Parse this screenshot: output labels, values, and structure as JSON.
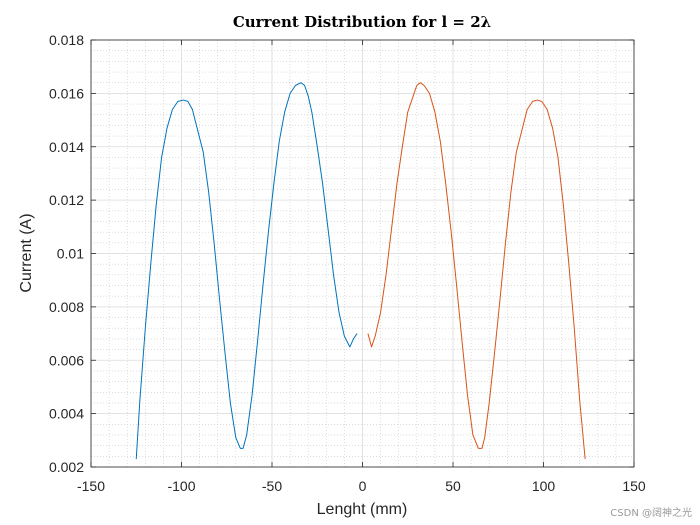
{
  "chart_data": {
    "type": "line",
    "title": "Current Distribution for l = 2λ",
    "xlabel": "Lenght (mm)",
    "ylabel": "Current (A)",
    "xlim": [
      -150,
      150
    ],
    "ylim": [
      0.002,
      0.018
    ],
    "xticks": [
      "-150",
      "-100",
      "-50",
      "0",
      "50",
      "100",
      "150"
    ],
    "yticks": [
      "0.002",
      "0.004",
      "0.006",
      "0.008",
      "0.01",
      "0.012",
      "0.014",
      "0.016",
      "0.018"
    ],
    "grid": "on (major and minor)",
    "series": [
      {
        "color": "#0072BD",
        "x": [
          -125,
          -123,
          -120,
          -117,
          -114,
          -111,
          -108,
          -105,
          -102,
          -99,
          -96.5,
          -94,
          -91,
          -88,
          -85,
          -82,
          -79,
          -76,
          -73,
          -70,
          -67.5,
          -66,
          -64,
          -61,
          -58,
          -55,
          -52,
          -49,
          -46,
          -43,
          -40,
          -37,
          -34,
          -32,
          -30,
          -28,
          -25,
          -22,
          -19,
          -16,
          -13,
          -10,
          -7,
          -5,
          -3
        ],
        "y": [
          0.0023,
          0.0045,
          0.0072,
          0.0096,
          0.0118,
          0.0136,
          0.0147,
          0.0154,
          0.0157,
          0.01575,
          0.0157,
          0.0154,
          0.0146,
          0.0138,
          0.0123,
          0.0104,
          0.0083,
          0.0063,
          0.0044,
          0.0031,
          0.0027,
          0.0027,
          0.0032,
          0.0047,
          0.0067,
          0.0088,
          0.0108,
          0.0126,
          0.0142,
          0.0153,
          0.016,
          0.0163,
          0.0164,
          0.0163,
          0.0159,
          0.0153,
          0.014,
          0.0126,
          0.0109,
          0.0092,
          0.0078,
          0.0069,
          0.0065,
          0.0068,
          0.007
        ]
      },
      {
        "color": "#D95319",
        "x": [
          3,
          5,
          7,
          10,
          13,
          16,
          19,
          22,
          25,
          28,
          30,
          32,
          34,
          37,
          40,
          43,
          46,
          49,
          52,
          55,
          58,
          61,
          64,
          66,
          67.5,
          70,
          73,
          76,
          79,
          82,
          85,
          88,
          91,
          94,
          96.5,
          99,
          102,
          105,
          108,
          111,
          114,
          117,
          120,
          123
        ],
        "y": [
          0.007,
          0.0065,
          0.0069,
          0.0078,
          0.0092,
          0.0109,
          0.0126,
          0.014,
          0.0153,
          0.0159,
          0.0163,
          0.0164,
          0.0163,
          0.016,
          0.0153,
          0.0142,
          0.0126,
          0.0108,
          0.0088,
          0.0067,
          0.0047,
          0.0032,
          0.0027,
          0.0027,
          0.0031,
          0.0044,
          0.0063,
          0.0083,
          0.0104,
          0.0123,
          0.0138,
          0.0146,
          0.0154,
          0.0157,
          0.01575,
          0.0157,
          0.0154,
          0.0147,
          0.0136,
          0.0118,
          0.0096,
          0.0072,
          0.0045,
          0.0023
        ]
      }
    ]
  },
  "watermark": "CSDN @阔神之光"
}
